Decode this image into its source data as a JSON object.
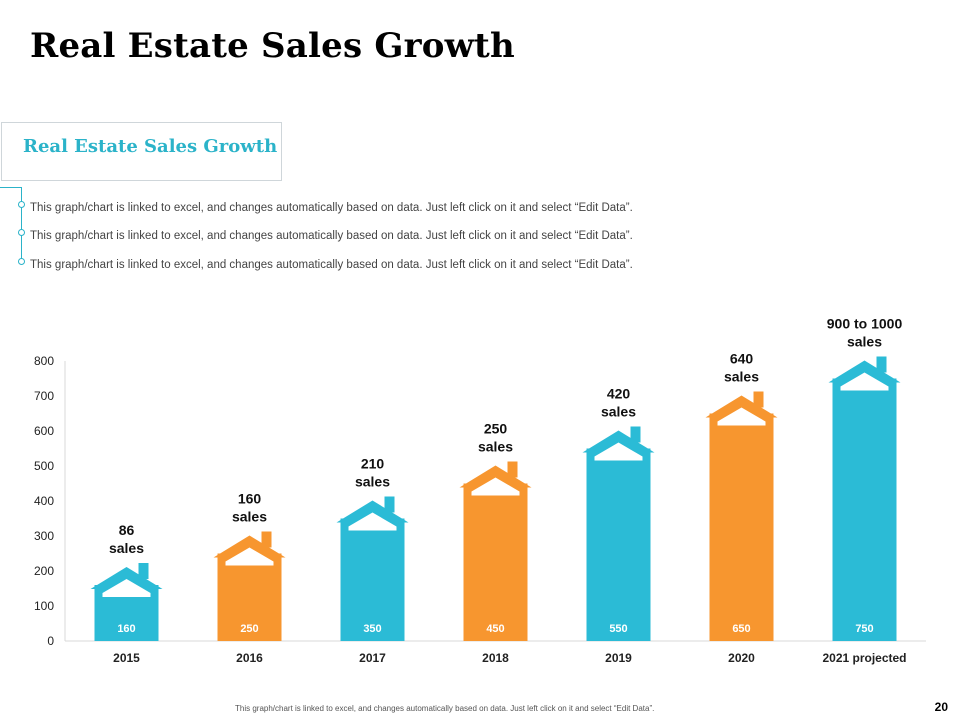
{
  "header": {
    "title": "Real Estate Sales Growth"
  },
  "subtitle_box": {
    "text": "Real Estate Sales Growth"
  },
  "notes": [
    "This graph/chart is linked to excel, and changes automatically based on data. Just left click on it and select “Edit Data”.",
    "This graph/chart is linked to excel, and changes automatically based on data. Just left click on it and select “Edit Data”.",
    "This graph/chart is linked to excel, and changes automatically based on data. Just left click on it and select “Edit Data”."
  ],
  "footer": {
    "note": "This graph/chart is linked to excel, and changes automatically based on data. Just left click on it and select “Edit Data”.",
    "page_number": "20"
  },
  "colors": {
    "teal": "#2bbbd6",
    "orange": "#f7962f",
    "accent": "#2bb3c9"
  },
  "chart_data": {
    "type": "bar",
    "categories": [
      "2015",
      "2016",
      "2017",
      "2018",
      "2019",
      "2020",
      "2021 projected"
    ],
    "values": [
      160,
      250,
      350,
      450,
      550,
      650,
      750
    ],
    "value_labels": [
      "160",
      "250",
      "350",
      "450",
      "550",
      "650",
      "750"
    ],
    "annotations": [
      [
        "86",
        "sales"
      ],
      [
        "160",
        "sales"
      ],
      [
        "210",
        "sales"
      ],
      [
        "250",
        "sales"
      ],
      [
        "420",
        "sales"
      ],
      [
        "640",
        "sales"
      ],
      [
        "900 to 1000",
        "sales"
      ]
    ],
    "bar_colors": [
      "teal",
      "orange",
      "teal",
      "orange",
      "teal",
      "orange",
      "teal"
    ],
    "bar_style": "house-shaped bars with roof and chimney",
    "ylim": [
      0,
      800
    ],
    "yticks": [
      0,
      100,
      200,
      300,
      400,
      500,
      600,
      700,
      800
    ],
    "xlabel": "",
    "ylabel": "",
    "grid": false
  }
}
